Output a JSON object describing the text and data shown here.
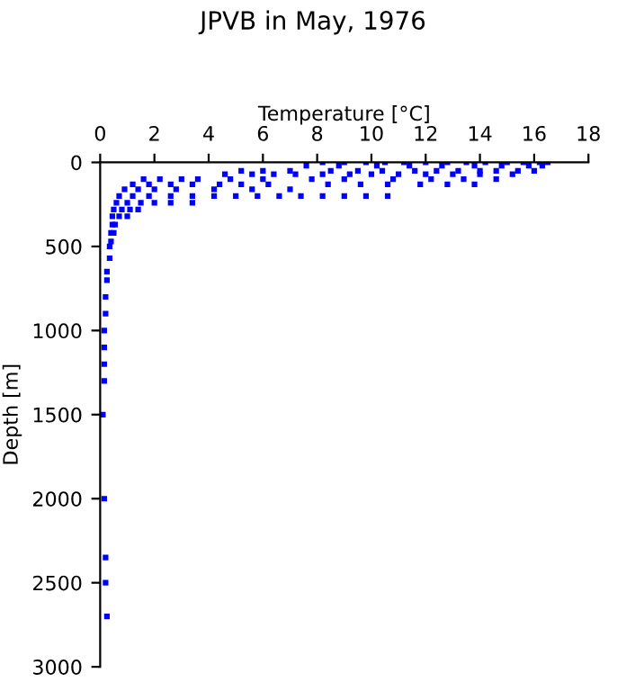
{
  "chart_data": {
    "type": "scatter",
    "title": "JPVB in May, 1976",
    "xlabel": "Temperature [°C]",
    "ylabel": "Depth [m]",
    "xlim": [
      0,
      18
    ],
    "xticks": [
      0,
      2,
      4,
      6,
      8,
      10,
      12,
      14,
      16,
      18
    ],
    "ylim": [
      3000,
      0
    ],
    "yticks": [
      0,
      500,
      1000,
      1500,
      2000,
      2500,
      3000
    ],
    "grid": false,
    "marker": "square",
    "series": [
      {
        "color": "#0000ff",
        "x": [
          8.2,
          9,
          9.8,
          10.5,
          11.2,
          12,
          12.8,
          13.5,
          14.2,
          15,
          15.6,
          16.2,
          16.5,
          7.6,
          8.8,
          10.2,
          11.4,
          12.6,
          13.8,
          14.8,
          15.8,
          16.3,
          5.2,
          6,
          7,
          8.5,
          9.5,
          10.4,
          11.6,
          12.4,
          13.2,
          14,
          14.6,
          15.4,
          16,
          4.6,
          5.6,
          6.4,
          7.2,
          8.2,
          9.2,
          10,
          11,
          12,
          13,
          14,
          15.2,
          1.6,
          2.2,
          3,
          3.6,
          4.8,
          6,
          7.8,
          9,
          10.8,
          12.2,
          13.4,
          14.6,
          1.2,
          1.8,
          2.6,
          3.4,
          4.4,
          5.2,
          6.2,
          8.4,
          9.6,
          10.6,
          11.8,
          12.8,
          13.8,
          0.9,
          1.4,
          2,
          2.8,
          4.2,
          5.6,
          7,
          0.7,
          1.2,
          1.8,
          2.6,
          3.4,
          4.2,
          5,
          5.8,
          6.6,
          7.4,
          8.2,
          9,
          9.8,
          10.6,
          0.6,
          1,
          1.5,
          2,
          2.6,
          3.4,
          0.5,
          0.8,
          1.1,
          1.4,
          0.45,
          0.7,
          1,
          0.45,
          0.55,
          0.4,
          0.5,
          0.4,
          0.35,
          0.35,
          0.25,
          0.25,
          0.2,
          0.2,
          0.15,
          0.15,
          0.15,
          0.15,
          0.1,
          0.15,
          0.2,
          0.2,
          0.25
        ],
        "values": [
          0,
          0,
          0,
          0,
          0,
          0,
          0,
          0,
          0,
          0,
          0,
          0,
          0,
          20,
          20,
          20,
          20,
          20,
          20,
          20,
          20,
          20,
          50,
          50,
          50,
          50,
          50,
          50,
          50,
          50,
          50,
          50,
          50,
          50,
          50,
          70,
          70,
          70,
          70,
          70,
          70,
          70,
          70,
          70,
          70,
          70,
          70,
          100,
          100,
          100,
          100,
          100,
          100,
          100,
          100,
          100,
          100,
          100,
          100,
          130,
          130,
          130,
          130,
          130,
          130,
          130,
          130,
          130,
          130,
          130,
          130,
          130,
          160,
          160,
          160,
          160,
          160,
          160,
          160,
          200,
          200,
          200,
          200,
          200,
          200,
          200,
          200,
          200,
          200,
          200,
          200,
          200,
          200,
          240,
          240,
          240,
          240,
          240,
          240,
          280,
          280,
          280,
          280,
          320,
          320,
          320,
          370,
          370,
          420,
          420,
          470,
          500,
          570,
          650,
          700,
          800,
          900,
          1000,
          1100,
          1200,
          1300,
          1500,
          2000,
          2350,
          2500,
          2700
        ]
      }
    ]
  }
}
